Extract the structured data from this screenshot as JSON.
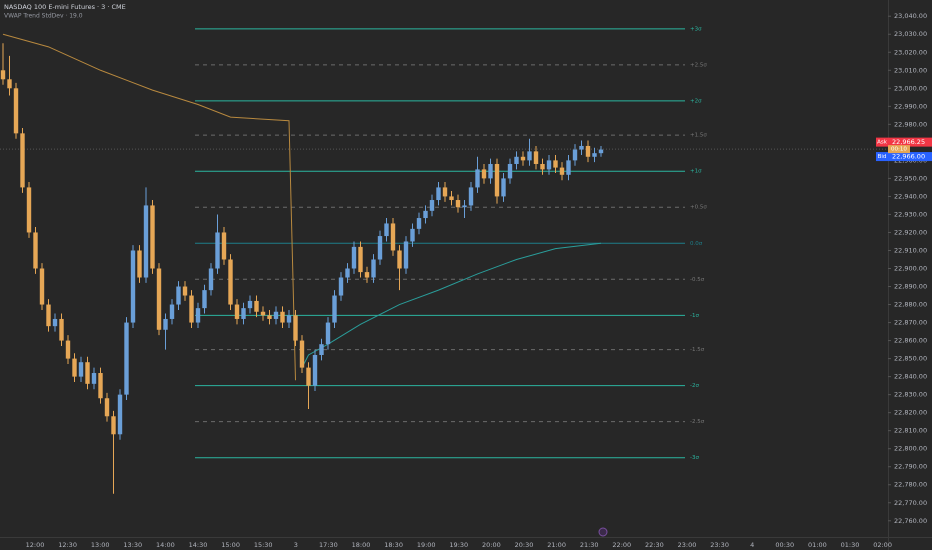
{
  "header": {
    "symbol": "NASDAQ 100 E-mini Futures · 3 · CME",
    "indicator": "VWAP Trend StdDev · 19.0"
  },
  "chart_data": {
    "type": "candlestick",
    "up_color": "#6a9fd8",
    "down_color": "#e6a756",
    "open": [
      23010,
      23005,
      23000,
      22975,
      22945,
      22920,
      22900,
      22880,
      22868,
      22872,
      22860,
      22850,
      22840,
      22848,
      22836,
      22842,
      22828,
      22818,
      22808,
      22830,
      22870,
      22910,
      22895,
      22935,
      22900,
      22866,
      22872,
      22880,
      22890,
      22885,
      22870,
      22878,
      22888,
      22900,
      22920,
      22905,
      22880,
      22872,
      22878,
      22882,
      22876,
      22874,
      22872,
      22876,
      22870,
      22874,
      22860,
      22845,
      22835,
      22852,
      22858,
      22870,
      22885,
      22895,
      22900,
      22912,
      22898,
      22895,
      22905,
      22918,
      22925,
      22910,
      22900,
      22915,
      22922,
      22928,
      22932,
      22938,
      22945,
      22940,
      22938,
      22934,
      22935,
      22945,
      22955,
      22950,
      22958,
      22940,
      22950,
      22958,
      22962,
      22960,
      22965,
      22958,
      22955,
      22960,
      22956,
      22952,
      22960,
      22966,
      22968,
      22962,
      22964
    ],
    "high": [
      23025,
      23018,
      23003,
      22978,
      22948,
      22923,
      22903,
      22883,
      22875,
      22875,
      22863,
      22853,
      22851,
      22851,
      22845,
      22845,
      22831,
      22821,
      22833,
      22873,
      22913,
      22913,
      22945,
      22938,
      22903,
      22875,
      22883,
      22893,
      22893,
      22888,
      22881,
      22891,
      22903,
      22930,
      22923,
      22908,
      22883,
      22881,
      22885,
      22885,
      22879,
      22877,
      22879,
      22879,
      22877,
      22877,
      22863,
      22848,
      22855,
      22861,
      22873,
      22888,
      22898,
      22903,
      22915,
      22915,
      22901,
      22908,
      22921,
      22928,
      22928,
      22913,
      22918,
      22925,
      22931,
      22935,
      22941,
      22948,
      22948,
      22943,
      22941,
      22938,
      22948,
      22962,
      22958,
      22961,
      22961,
      22953,
      22961,
      22965,
      22965,
      22972,
      22968,
      22961,
      22963,
      22963,
      22959,
      22963,
      22969,
      22971,
      22971,
      22967,
      22968
    ],
    "low": [
      23002,
      22996,
      22972,
      22942,
      22917,
      22897,
      22877,
      22865,
      22865,
      22857,
      22847,
      22837,
      22837,
      22833,
      22833,
      22825,
      22815,
      22775,
      22805,
      22827,
      22867,
      22892,
      22892,
      22897,
      22863,
      22855,
      22869,
      22877,
      22882,
      22867,
      22867,
      22875,
      22885,
      22897,
      22902,
      22877,
      22869,
      22869,
      22875,
      22873,
      22871,
      22869,
      22869,
      22867,
      22867,
      22857,
      22842,
      22822,
      22832,
      22849,
      22855,
      22867,
      22882,
      22892,
      22897,
      22895,
      22892,
      22892,
      22902,
      22915,
      22907,
      22888,
      22897,
      22912,
      22919,
      22925,
      22929,
      22935,
      22937,
      22935,
      22931,
      22928,
      22932,
      22942,
      22947,
      22947,
      22936,
      22937,
      22947,
      22955,
      22957,
      22957,
      22955,
      22952,
      22952,
      22953,
      22949,
      22949,
      22957,
      22963,
      22959,
      22959,
      22962
    ],
    "close": [
      23005,
      23000,
      22975,
      22945,
      22920,
      22900,
      22880,
      22868,
      22872,
      22860,
      22850,
      22840,
      22848,
      22836,
      22842,
      22828,
      22818,
      22808,
      22830,
      22870,
      22910,
      22895,
      22935,
      22900,
      22866,
      22872,
      22880,
      22890,
      22885,
      22870,
      22878,
      22888,
      22900,
      22920,
      22905,
      22880,
      22872,
      22878,
      22882,
      22876,
      22874,
      22872,
      22876,
      22870,
      22874,
      22860,
      22845,
      22835,
      22852,
      22858,
      22870,
      22885,
      22895,
      22900,
      22912,
      22898,
      22895,
      22905,
      22918,
      22925,
      22910,
      22900,
      22915,
      22922,
      22928,
      22932,
      22938,
      22945,
      22940,
      22938,
      22934,
      22935,
      22945,
      22955,
      22950,
      22958,
      22940,
      22950,
      22958,
      22962,
      22960,
      22965,
      22958,
      22955,
      22960,
      22956,
      22952,
      22960,
      22966,
      22968,
      22962,
      22964,
      22966
    ],
    "overlays": [
      {
        "color": "#b8893f",
        "index": [
          0,
          7,
          15,
          23,
          30,
          35,
          44,
          45
        ],
        "values": [
          23030,
          23023,
          23010,
          22999,
          22991,
          22984,
          22982,
          22838
        ]
      },
      {
        "color": "#2a9d9a",
        "index": [
          46,
          47,
          50,
          55,
          61,
          67,
          73,
          79,
          85,
          92
        ],
        "values": [
          22845,
          22852,
          22858,
          22869,
          22880,
          22888,
          22897,
          22905,
          22911,
          22914
        ]
      }
    ],
    "bands": [
      {
        "label": "+3σ",
        "value": 23033,
        "style": "solid"
      },
      {
        "label": "+2.5σ",
        "value": 23013,
        "style": "dashed"
      },
      {
        "label": "+2σ",
        "value": 22993,
        "style": "solid"
      },
      {
        "label": "+1.5σ",
        "value": 22974,
        "style": "dashed"
      },
      {
        "label": "+1σ",
        "value": 22954,
        "style": "solid"
      },
      {
        "label": "+0.5σ",
        "value": 22934,
        "style": "dashed"
      },
      {
        "label": "0.0σ",
        "value": 22914,
        "style": "center"
      },
      {
        "label": "-0.5σ",
        "value": 22894,
        "style": "dashed"
      },
      {
        "label": "-1σ",
        "value": 22874,
        "style": "solid"
      },
      {
        "label": "-1.5σ",
        "value": 22855,
        "style": "dashed"
      },
      {
        "label": "-2σ",
        "value": 22835,
        "style": "solid"
      },
      {
        "label": "-2.5σ",
        "value": 22815,
        "style": "dashed"
      },
      {
        "label": "-3σ",
        "value": 22795,
        "style": "solid"
      }
    ],
    "price_tags": [
      {
        "name": "Ask",
        "value": 22966.25,
        "label": "22,966.25",
        "color": "#f23645"
      },
      {
        "name": "Bid",
        "value": 22966.0,
        "label": "22,966.00",
        "color": "#2962ff"
      }
    ],
    "countdown": "00:10",
    "time_labels": [
      "12:00",
      "12:30",
      "13:00",
      "13:30",
      "14:00",
      "14:30",
      "15:00",
      "15:30",
      "3",
      "17:30",
      "18:00",
      "18:30",
      "19:00",
      "19:30",
      "20:00",
      "20:30",
      "21:00",
      "21:30",
      "22:00",
      "22:30",
      "23:00",
      "23:30",
      "4",
      "00:30",
      "01:00",
      "01:30",
      "02:00"
    ],
    "ylim": [
      22751,
      23049
    ],
    "yticks": [
      {
        "value": 22760,
        "label": "22,760.00"
      },
      {
        "value": 22770,
        "label": "22,770.00"
      },
      {
        "value": 22780,
        "label": "22,780.00"
      },
      {
        "value": 22790,
        "label": "22,790.00"
      },
      {
        "value": 22800,
        "label": "22,800.00"
      },
      {
        "value": 22810,
        "label": "22,810.00"
      },
      {
        "value": 22820,
        "label": "22,820.00"
      },
      {
        "value": 22830,
        "label": "22,830.00"
      },
      {
        "value": 22840,
        "label": "22,840.00"
      },
      {
        "value": 22850,
        "label": "22,850.00"
      },
      {
        "value": 22860,
        "label": "22,860.00"
      },
      {
        "value": 22870,
        "label": "22,870.00"
      },
      {
        "value": 22880,
        "label": "22,880.00"
      },
      {
        "value": 22890,
        "label": "22,890.00"
      },
      {
        "value": 22900,
        "label": "22,900.00"
      },
      {
        "value": 22910,
        "label": "22,910.00"
      },
      {
        "value": 22920,
        "label": "22,920.00"
      },
      {
        "value": 22930,
        "label": "22,930.00"
      },
      {
        "value": 22940,
        "label": "22,940.00"
      },
      {
        "value": 22950,
        "label": "22,950.00"
      },
      {
        "value": 22960,
        "label": "22,960.00"
      },
      {
        "value": 22970,
        "label": "22,970.00"
      },
      {
        "value": 22980,
        "label": "22,980.00"
      },
      {
        "value": 22990,
        "label": "22,990.00"
      },
      {
        "value": 23000,
        "label": "23,000.00"
      },
      {
        "value": 23010,
        "label": "23,010.00"
      },
      {
        "value": 23020,
        "label": "23,020.00"
      },
      {
        "value": 23030,
        "label": "23,030.00"
      },
      {
        "value": 23040,
        "label": "23,040.00"
      }
    ]
  }
}
